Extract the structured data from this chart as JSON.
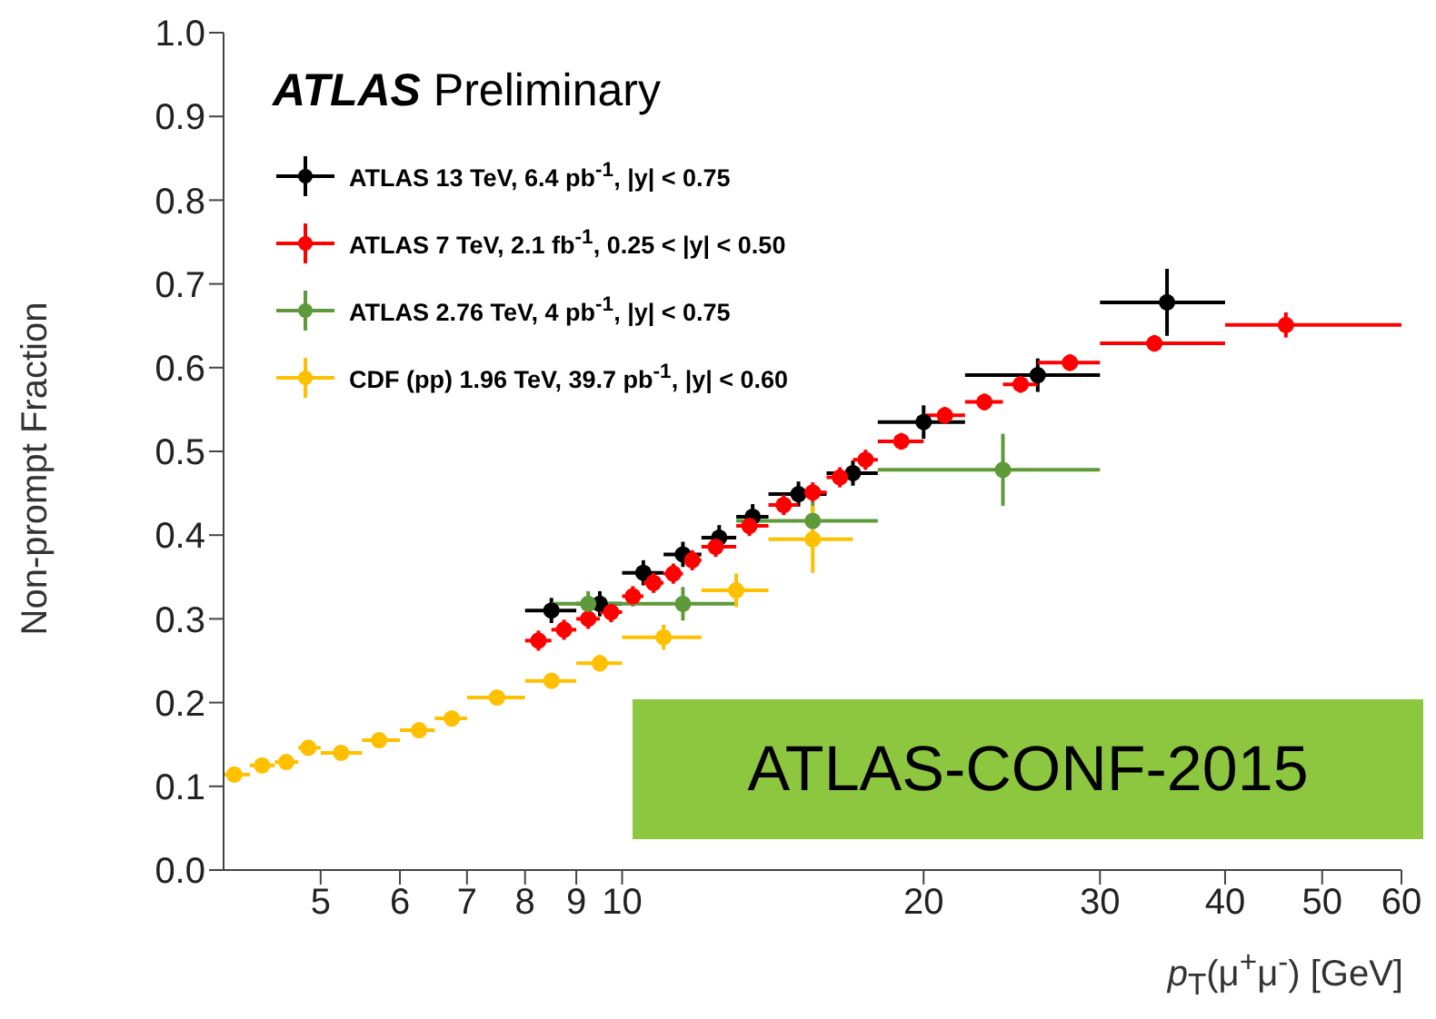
{
  "chart_data": {
    "type": "scatter",
    "xlabel": "p$_{T}$(μ$^{+}$μ$^{-}$) [GeV]",
    "ylabel": "Non-prompt Fraction",
    "log": "x",
    "xlim": [
      4,
      60
    ],
    "xticks": [
      5,
      6,
      7,
      8,
      9,
      10,
      20,
      30,
      40,
      50,
      60
    ],
    "ylim": [
      0,
      1
    ],
    "yticks": [
      {
        "value": 0,
        "label": "0.0"
      },
      {
        "value": 0.1,
        "label": "0.1"
      },
      {
        "value": 0.2,
        "label": "0.2"
      },
      {
        "value": 0.3,
        "label": "0.3"
      },
      {
        "value": 0.4,
        "label": "0.4"
      },
      {
        "value": 0.5,
        "label": "0.5"
      },
      {
        "value": 0.6,
        "label": "0.6"
      },
      {
        "value": 0.7,
        "label": "0.7"
      },
      {
        "value": 0.8,
        "label": "0.8"
      },
      {
        "value": 0.9,
        "label": "0.9"
      },
      {
        "value": 1,
        "label": "1.0"
      }
    ],
    "grid": false,
    "legend": "top left",
    "marker": "circle",
    "annotations": [
      "ATLAS Preliminary",
      "ATLAS-CONF-2015"
    ],
    "series": [
      {
        "name": "ATLAS 13 TeV, 6.4 pb$^{-1}$, |y| < 0.75",
        "color": "#000000",
        "x": [
          8.5,
          9.5,
          10.5,
          11.5,
          12.5,
          13.5,
          15,
          17,
          20,
          26,
          35
        ],
        "values": [
          0.31,
          0.318,
          0.355,
          0.377,
          0.397,
          0.422,
          0.449,
          0.474,
          0.535,
          0.591,
          0.678
        ],
        "errors": [
          0.015,
          0.015,
          0.015,
          0.015,
          0.015,
          0.015,
          0.015,
          0.015,
          0.02,
          0.02,
          0.04
        ],
        "xerrors": [
          [
            8,
            9
          ],
          [
            9,
            10
          ],
          [
            10,
            11
          ],
          [
            11,
            12
          ],
          [
            12,
            13
          ],
          [
            13,
            14
          ],
          [
            14,
            16
          ],
          [
            16,
            18
          ],
          [
            18,
            22
          ],
          [
            22,
            30
          ],
          [
            30,
            40
          ]
        ]
      },
      {
        "name": "ATLAS 7 TeV, 2.1 fb$^{-1}$, 0.25 < |y| < 0.50",
        "color": "#ff0000",
        "x": [
          8.25,
          8.75,
          9.25,
          9.75,
          10.25,
          10.75,
          11.25,
          11.75,
          12.4,
          13.4,
          14.5,
          15.5,
          16.5,
          17.5,
          19,
          21,
          23,
          25,
          28,
          34,
          46
        ],
        "values": [
          0.274,
          0.287,
          0.3,
          0.308,
          0.327,
          0.343,
          0.354,
          0.37,
          0.386,
          0.411,
          0.436,
          0.451,
          0.469,
          0.49,
          0.512,
          0.543,
          0.559,
          0.58,
          0.606,
          0.629,
          0.651
        ],
        "errors": [
          0.012,
          0.012,
          0.012,
          0.012,
          0.012,
          0.012,
          0.012,
          0.012,
          0.012,
          0.012,
          0.012,
          0.012,
          0.012,
          0.012,
          0.01,
          0.01,
          0.01,
          0.01,
          0.01,
          0.01,
          0.015
        ],
        "xerrors": [
          [
            8,
            8.5
          ],
          [
            8.5,
            9
          ],
          [
            9,
            9.5
          ],
          [
            9.5,
            10
          ],
          [
            10,
            10.5
          ],
          [
            10.5,
            11
          ],
          [
            11,
            11.5
          ],
          [
            11.5,
            12
          ],
          [
            12,
            13
          ],
          [
            13,
            14
          ],
          [
            14,
            15
          ],
          [
            15,
            16
          ],
          [
            16,
            17
          ],
          [
            17,
            18
          ],
          [
            18,
            20
          ],
          [
            20,
            22
          ],
          [
            22,
            24
          ],
          [
            24,
            26
          ],
          [
            26,
            30
          ],
          [
            30,
            40
          ],
          [
            40,
            60
          ]
        ]
      },
      {
        "name": "ATLAS 2.76 TeV, 4 pb$^{-1}$, |y| < 0.75",
        "color": "#5e9a3a",
        "x": [
          9.25,
          11.5,
          15.5,
          24
        ],
        "values": [
          0.318,
          0.318,
          0.417,
          0.478
        ],
        "errors": [
          0.015,
          0.02,
          0.023,
          0.043
        ],
        "xerrors": [
          [
            8.5,
            10
          ],
          [
            10,
            13
          ],
          [
            13,
            18
          ],
          [
            18,
            30
          ]
        ]
      },
      {
        "name": "CDF (pp) 1.96 TeV, 39.7 pb$^{-1}$, |y| < 0.60",
        "color": "#ffc000",
        "x": [
          4.1,
          4.37,
          4.62,
          4.86,
          5.24,
          5.72,
          6.27,
          6.76,
          7.5,
          8.5,
          9.5,
          11,
          13,
          15.5
        ],
        "values": [
          0.114,
          0.125,
          0.129,
          0.146,
          0.14,
          0.155,
          0.167,
          0.181,
          0.206,
          0.226,
          0.247,
          0.278,
          0.334,
          0.395
        ],
        "errors": [
          0.005,
          0.005,
          0.005,
          0.006,
          0.006,
          0.006,
          0.007,
          0.007,
          0.008,
          0.008,
          0.01,
          0.015,
          0.02,
          0.04
        ],
        "xerrors": [
          [
            4,
            4.25
          ],
          [
            4.25,
            4.5
          ],
          [
            4.5,
            4.75
          ],
          [
            4.75,
            5
          ],
          [
            5,
            5.5
          ],
          [
            5.5,
            6
          ],
          [
            6,
            6.5
          ],
          [
            6.5,
            7
          ],
          [
            7,
            8
          ],
          [
            8,
            9
          ],
          [
            9,
            10
          ],
          [
            10,
            12
          ],
          [
            12,
            14
          ],
          [
            14,
            17
          ]
        ]
      }
    ]
  }
}
